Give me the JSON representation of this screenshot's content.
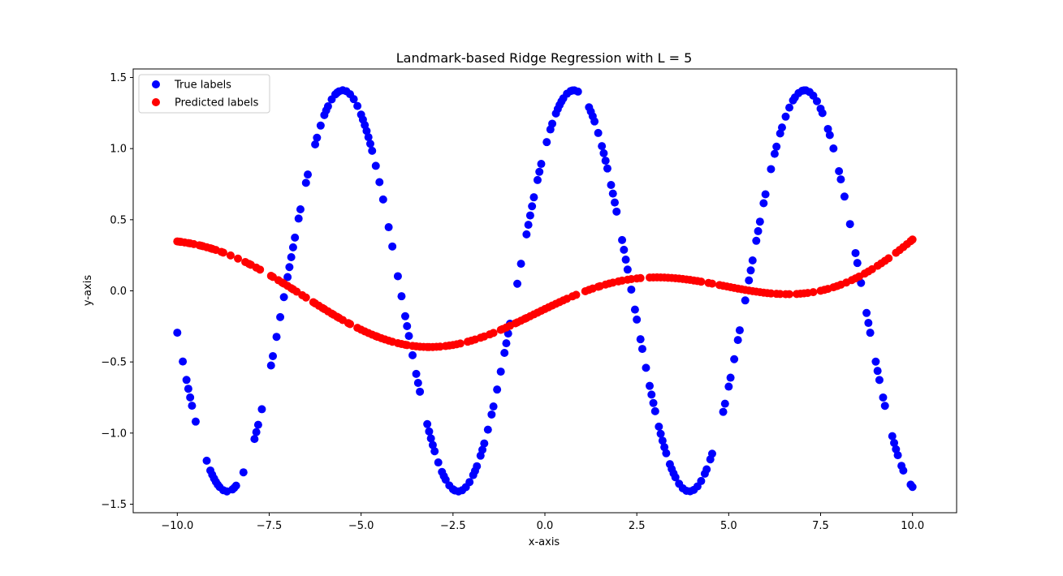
{
  "chart_data": {
    "type": "scatter",
    "title": "Landmark-based Ridge Regression with L = 5",
    "xlabel": "x-axis",
    "ylabel": "y-axis",
    "xlim": [
      -11.2,
      11.2
    ],
    "ylim": [
      -1.56,
      1.56
    ],
    "xticks": [
      -10.0,
      -7.5,
      -5.0,
      -2.5,
      0.0,
      2.5,
      5.0,
      7.5,
      10.0
    ],
    "xtick_labels": [
      "−10.0",
      "−7.5",
      "−5.0",
      "−2.5",
      "0.0",
      "2.5",
      "5.0",
      "7.5",
      "10.0"
    ],
    "yticks": [
      -1.5,
      -1.0,
      -0.5,
      0.0,
      0.5,
      1.0,
      1.5
    ],
    "ytick_labels": [
      "−1.5",
      "−1.0",
      "−0.5",
      "0.0",
      "0.5",
      "1.0",
      "1.5"
    ],
    "grid": false,
    "legend_position": "top-left",
    "series": [
      {
        "name": "True labels",
        "color": "#0000ff",
        "function": "1.41*sin(x + pi/4)",
        "x": [
          -10.0,
          -9.85,
          -9.75,
          -9.7,
          -9.65,
          -9.6,
          -9.5,
          -9.2,
          -9.1,
          -9.05,
          -9.0,
          -8.95,
          -8.9,
          -8.85,
          -8.75,
          -8.65,
          -8.5,
          -8.45,
          -8.4,
          -8.2,
          -7.9,
          -7.85,
          -7.8,
          -7.7,
          -7.45,
          -7.4,
          -7.3,
          -7.2,
          -7.1,
          -7.0,
          -6.95,
          -6.9,
          -6.85,
          -6.8,
          -6.7,
          -6.65,
          -6.5,
          -6.45,
          -6.25,
          -6.2,
          -6.1,
          -6.0,
          -5.95,
          -5.9,
          -5.8,
          -5.7,
          -5.65,
          -5.6,
          -5.5,
          -5.4,
          -5.3,
          -5.2,
          -5.1,
          -5.0,
          -4.95,
          -4.9,
          -4.85,
          -4.8,
          -4.75,
          -4.7,
          -4.6,
          -4.5,
          -4.4,
          -4.25,
          -4.15,
          -4.0,
          -3.9,
          -3.8,
          -3.75,
          -3.7,
          -3.6,
          -3.5,
          -3.45,
          -3.4,
          -3.2,
          -3.15,
          -3.1,
          -3.05,
          -3.0,
          -2.9,
          -2.8,
          -2.75,
          -2.7,
          -2.6,
          -2.5,
          -2.45,
          -2.35,
          -2.25,
          -2.15,
          -2.05,
          -1.95,
          -1.9,
          -1.85,
          -1.75,
          -1.7,
          -1.65,
          -1.55,
          -1.45,
          -1.4,
          -1.3,
          -1.2,
          -1.1,
          -1.05,
          -1.0,
          -0.95,
          -0.75,
          -0.65,
          -0.5,
          -0.45,
          -0.4,
          -0.35,
          -0.3,
          -0.2,
          -0.15,
          -0.1,
          0.05,
          0.15,
          0.2,
          0.3,
          0.35,
          0.4,
          0.45,
          0.5,
          0.6,
          0.7,
          0.75,
          0.8,
          0.9,
          1.2,
          1.25,
          1.3,
          1.35,
          1.45,
          1.55,
          1.6,
          1.65,
          1.7,
          1.8,
          1.85,
          1.9,
          1.95,
          2.1,
          2.15,
          2.2,
          2.25,
          2.35,
          2.45,
          2.5,
          2.6,
          2.65,
          2.75,
          2.85,
          2.9,
          2.95,
          3.0,
          3.1,
          3.15,
          3.2,
          3.25,
          3.3,
          3.4,
          3.45,
          3.5,
          3.55,
          3.65,
          3.75,
          3.85,
          3.95,
          4.05,
          4.15,
          4.25,
          4.35,
          4.4,
          4.5,
          4.55,
          4.85,
          4.9,
          5.0,
          5.05,
          5.15,
          5.25,
          5.3,
          5.45,
          5.55,
          5.6,
          5.65,
          5.75,
          5.8,
          5.85,
          5.95,
          6.0,
          6.15,
          6.25,
          6.3,
          6.4,
          6.45,
          6.55,
          6.65,
          6.75,
          6.8,
          6.9,
          7.0,
          7.05,
          7.1,
          7.2,
          7.3,
          7.4,
          7.5,
          7.55,
          7.7,
          7.75,
          7.85,
          8.0,
          8.05,
          8.15,
          8.3,
          8.45,
          8.5,
          8.6,
          8.75,
          8.8,
          8.85,
          9.0,
          9.05,
          9.1,
          9.2,
          9.25,
          9.45,
          9.5,
          9.55,
          9.6,
          9.7,
          9.75,
          9.95,
          10.0
        ]
      },
      {
        "name": "Predicted labels",
        "color": "#ff0000",
        "function": "0.0148*x + 0.21*sin(0.55*x + 0.3) + 0.005*x^2 - 0.19",
        "x": [
          -10.0,
          -9.95,
          -9.9,
          -9.8,
          -9.7,
          -9.65,
          -9.55,
          -9.4,
          -9.35,
          -9.3,
          -9.2,
          -9.1,
          -9.05,
          -8.95,
          -8.8,
          -8.75,
          -8.55,
          -8.35,
          -8.15,
          -8.05,
          -8.0,
          -7.85,
          -7.75,
          -7.45,
          -7.4,
          -7.25,
          -7.15,
          -7.1,
          -7.0,
          -6.9,
          -6.85,
          -6.75,
          -6.6,
          -6.5,
          -6.3,
          -6.25,
          -6.15,
          -6.05,
          -6.0,
          -5.9,
          -5.8,
          -5.75,
          -5.65,
          -5.6,
          -5.5,
          -5.35,
          -5.3,
          -5.1,
          -5.0,
          -4.9,
          -4.8,
          -4.7,
          -4.6,
          -4.55,
          -4.45,
          -4.35,
          -4.25,
          -4.15,
          -4.0,
          -3.9,
          -3.8,
          -3.75,
          -3.6,
          -3.5,
          -3.4,
          -3.3,
          -3.2,
          -3.15,
          -3.05,
          -2.95,
          -2.85,
          -2.7,
          -2.6,
          -2.5,
          -2.4,
          -2.3,
          -2.1,
          -2.0,
          -1.9,
          -1.75,
          -1.65,
          -1.5,
          -1.4,
          -1.2,
          -1.15,
          -1.05,
          -0.95,
          -0.8,
          -0.75,
          -0.65,
          -0.55,
          -0.5,
          -0.4,
          -0.3,
          -0.2,
          -0.1,
          0.0,
          0.1,
          0.2,
          0.3,
          0.4,
          0.5,
          0.6,
          0.75,
          0.85,
          1.1,
          1.2,
          1.3,
          1.45,
          1.5,
          1.65,
          1.75,
          1.85,
          2.0,
          2.1,
          2.25,
          2.35,
          2.5,
          2.6,
          2.85,
          2.95,
          3.05,
          3.15,
          3.25,
          3.35,
          3.45,
          3.55,
          3.65,
          3.75,
          3.85,
          3.95,
          4.05,
          4.15,
          4.25,
          4.45,
          4.55,
          4.75,
          4.85,
          4.95,
          5.05,
          5.15,
          5.25,
          5.35,
          5.45,
          5.55,
          5.65,
          5.75,
          5.85,
          5.95,
          6.05,
          6.15,
          6.3,
          6.4,
          6.55,
          6.65,
          6.85,
          6.95,
          7.05,
          7.15,
          7.3,
          7.5,
          7.6,
          7.7,
          7.85,
          7.95,
          8.05,
          8.2,
          8.35,
          8.45,
          8.55,
          8.7,
          8.8,
          8.9,
          9.05,
          9.15,
          9.25,
          9.35,
          9.55,
          9.65,
          9.75,
          9.85,
          9.95,
          10.0
        ]
      }
    ]
  }
}
